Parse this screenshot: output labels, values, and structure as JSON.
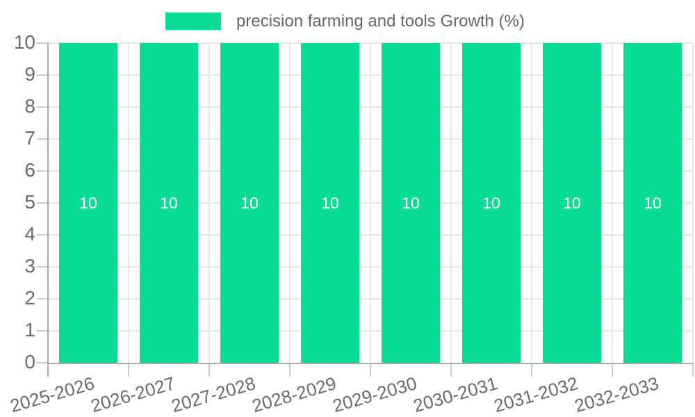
{
  "legend": {
    "label": "precision farming and tools Growth (%)"
  },
  "chart_data": {
    "type": "bar",
    "title": "precision farming and tools Growth (%)",
    "categories": [
      "2025-2026",
      "2026-2027",
      "2027-2028",
      "2028-2029",
      "2029-2030",
      "2030-2031",
      "2031-2032",
      "2032-2033"
    ],
    "values": [
      10,
      10,
      10,
      10,
      10,
      10,
      10,
      10
    ],
    "y_ticks": [
      0,
      1,
      2,
      3,
      4,
      5,
      6,
      7,
      8,
      9,
      10
    ],
    "ylim": [
      0,
      10
    ],
    "xlabel": "",
    "ylabel": "",
    "grid": true,
    "legend_position": "top",
    "bar_color": "#0adc96",
    "value_label_color": "#ffffff"
  },
  "colors": {
    "background": "#ffffff",
    "grid": "#e6e6e6",
    "tick_mark": "#cccccc",
    "axis_line": "#a9a9a9",
    "label_text": "#6b6b6b",
    "legend_text": "#666666"
  }
}
